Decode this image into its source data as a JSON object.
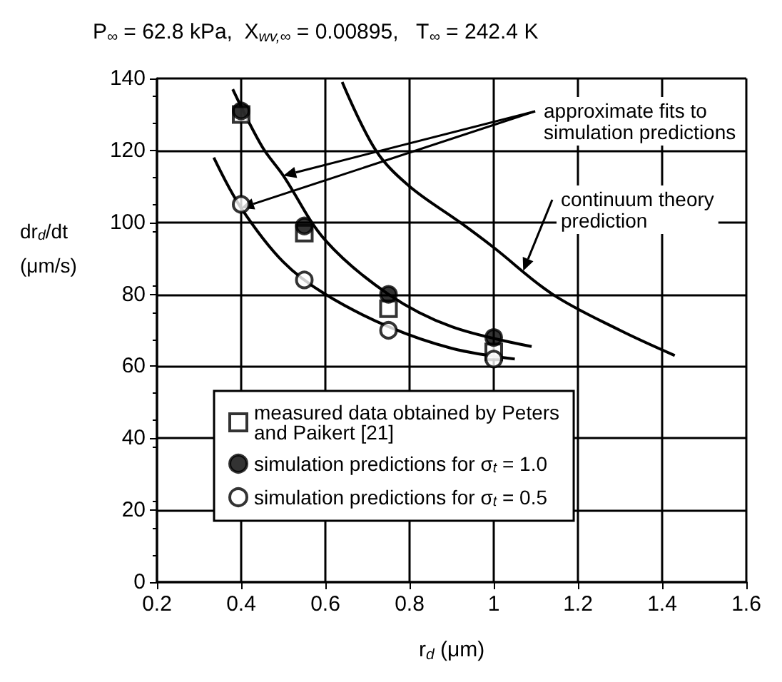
{
  "chart_data": {
    "type": "scatter",
    "title": "P$_{∞}$ = 62.8 kPa,  X$_{wv,∞}$ = 0.00895,   T$_{∞}$ = 242.4 K",
    "xlabel": "r$_{d}$ (μm)",
    "ylabel": "dr$_{d}$/dt (μm/s)",
    "xlim": [
      0.2,
      1.6
    ],
    "xticks": [
      0.2,
      0.4,
      0.6,
      0.8,
      1,
      1.2,
      1.4,
      1.6
    ],
    "ylim": [
      0,
      140
    ],
    "yticks": [
      0,
      20,
      40,
      60,
      80,
      100,
      120,
      140
    ],
    "grid": true,
    "legend": "bottom",
    "series": [
      {
        "name": "measured data obtained by Peters and Paikert [21]",
        "marker": "square",
        "color": "#ffffff",
        "x": [
          0.4,
          0.55,
          0.75,
          1.0
        ],
        "values": [
          130,
          97,
          76,
          64
        ]
      },
      {
        "name": "simulation predictions for σ$_{t}$ = 1.0",
        "marker": "circle",
        "color": "#000000",
        "x": [
          0.4,
          0.55,
          0.75,
          1.0
        ],
        "values": [
          131,
          99,
          80,
          68
        ]
      },
      {
        "name": "simulation predictions for σ$_{t}$ = 0.5",
        "marker": "circle",
        "color": "#ffffff",
        "x": [
          0.4,
          0.55,
          0.75,
          1.0
        ],
        "values": [
          105,
          84,
          70,
          62
        ]
      },
      {
        "type": "line",
        "marker": "none",
        "color": "#000000",
        "x": [
          0.38,
          0.45,
          0.5,
          0.6,
          0.75,
          0.9,
          1.09
        ],
        "values": [
          137,
          121,
          113,
          95,
          80,
          71,
          65.5
        ]
      },
      {
        "type": "line",
        "marker": "none",
        "color": "#000000",
        "x": [
          0.335,
          0.4,
          0.5,
          0.6,
          0.75,
          0.9,
          1.05
        ],
        "values": [
          118,
          104,
          89,
          80,
          71,
          65,
          62
        ]
      },
      {
        "type": "line",
        "marker": "none",
        "color": "#000000",
        "x": [
          0.64,
          0.72,
          0.8,
          0.92,
          1.0,
          1.14,
          1.3,
          1.43
        ],
        "values": [
          139,
          120,
          110,
          100,
          93,
          80,
          70,
          63
        ]
      }
    ],
    "annotations": [
      "approximate fits to simulation predictions",
      {
        "text": "continuum theory prediction",
        "x": 1.07,
        "y": 86.5
      }
    ]
  }
}
